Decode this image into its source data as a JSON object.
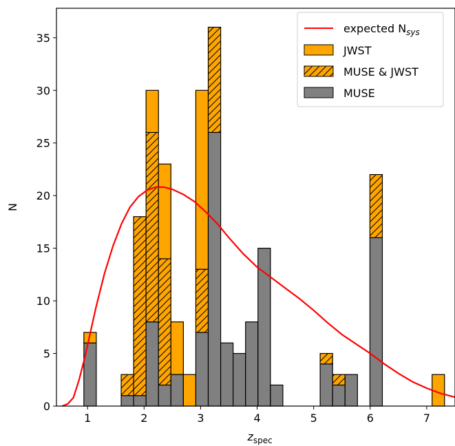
{
  "chart_data": {
    "type": "bar",
    "stacked": true,
    "xlabel": "z",
    "xlabel_sub": "spec",
    "ylabel": "N",
    "xlim": [
      0.45,
      7.5
    ],
    "ylim": [
      0,
      37.8
    ],
    "xticks": [
      1,
      2,
      3,
      4,
      5,
      6,
      7
    ],
    "yticks": [
      0,
      5,
      10,
      15,
      20,
      25,
      30,
      35
    ],
    "bin_width": 0.22,
    "bins": [
      {
        "left": 0.935,
        "muse": 6,
        "muse_jwst": 0,
        "jwst": 1
      },
      {
        "left": 1.595,
        "muse": 1,
        "muse_jwst": 2,
        "jwst": 0
      },
      {
        "left": 1.815,
        "muse": 1,
        "muse_jwst": 17,
        "jwst": 0
      },
      {
        "left": 2.035,
        "muse": 8,
        "muse_jwst": 18,
        "jwst": 4
      },
      {
        "left": 2.255,
        "muse": 2,
        "muse_jwst": 12,
        "jwst": 9
      },
      {
        "left": 2.475,
        "muse": 3,
        "muse_jwst": 0,
        "jwst": 5
      },
      {
        "left": 2.695,
        "muse": 0,
        "muse_jwst": 0,
        "jwst": 3
      },
      {
        "left": 2.915,
        "muse": 7,
        "muse_jwst": 6,
        "jwst": 17
      },
      {
        "left": 3.135,
        "muse": 26,
        "muse_jwst": 10,
        "jwst": 0
      },
      {
        "left": 3.355,
        "muse": 6,
        "muse_jwst": 0,
        "jwst": 0
      },
      {
        "left": 3.575,
        "muse": 5,
        "muse_jwst": 0,
        "jwst": 0
      },
      {
        "left": 3.795,
        "muse": 8,
        "muse_jwst": 0,
        "jwst": 0
      },
      {
        "left": 4.015,
        "muse": 15,
        "muse_jwst": 0,
        "jwst": 0
      },
      {
        "left": 4.235,
        "muse": 2,
        "muse_jwst": 0,
        "jwst": 0
      },
      {
        "left": 5.115,
        "muse": 4,
        "muse_jwst": 1,
        "jwst": 0
      },
      {
        "left": 5.335,
        "muse": 2,
        "muse_jwst": 1,
        "jwst": 0
      },
      {
        "left": 5.555,
        "muse": 3,
        "muse_jwst": 0,
        "jwst": 0
      },
      {
        "left": 5.995,
        "muse": 16,
        "muse_jwst": 6,
        "jwst": 0
      },
      {
        "left": 7.095,
        "muse": 0,
        "muse_jwst": 0,
        "jwst": 3
      }
    ],
    "curve": {
      "name": "expected N",
      "name_sub": "sys",
      "color": "#ff0000",
      "points": [
        [
          0.55,
          0.0
        ],
        [
          0.65,
          0.2
        ],
        [
          0.75,
          0.8
        ],
        [
          0.85,
          2.5
        ],
        [
          0.95,
          4.6
        ],
        [
          1.05,
          7.0
        ],
        [
          1.15,
          9.4
        ],
        [
          1.3,
          12.6
        ],
        [
          1.45,
          15.2
        ],
        [
          1.6,
          17.3
        ],
        [
          1.75,
          18.9
        ],
        [
          1.9,
          19.9
        ],
        [
          2.05,
          20.5
        ],
        [
          2.2,
          20.8
        ],
        [
          2.35,
          20.8
        ],
        [
          2.5,
          20.6
        ],
        [
          2.7,
          20.1
        ],
        [
          2.9,
          19.4
        ],
        [
          3.1,
          18.4
        ],
        [
          3.3,
          17.3
        ],
        [
          3.5,
          16.0
        ],
        [
          3.75,
          14.5
        ],
        [
          4.0,
          13.2
        ],
        [
          4.25,
          12.2
        ],
        [
          4.5,
          11.2
        ],
        [
          4.75,
          10.2
        ],
        [
          5.0,
          9.1
        ],
        [
          5.25,
          7.9
        ],
        [
          5.5,
          6.8
        ],
        [
          5.75,
          5.9
        ],
        [
          6.0,
          5.0
        ],
        [
          6.25,
          4.0
        ],
        [
          6.5,
          3.1
        ],
        [
          6.75,
          2.3
        ],
        [
          7.0,
          1.7
        ],
        [
          7.25,
          1.2
        ],
        [
          7.5,
          0.85
        ]
      ]
    },
    "series": [
      {
        "key": "jwst",
        "name": "JWST",
        "color": "#ffa500",
        "hatch": false
      },
      {
        "key": "muse_jwst",
        "name": "MUSE & JWST",
        "color": "#ffa500",
        "hatch": true
      },
      {
        "key": "muse",
        "name": "MUSE",
        "color": "#808080",
        "hatch": false
      }
    ],
    "legend_position": "top-right"
  }
}
